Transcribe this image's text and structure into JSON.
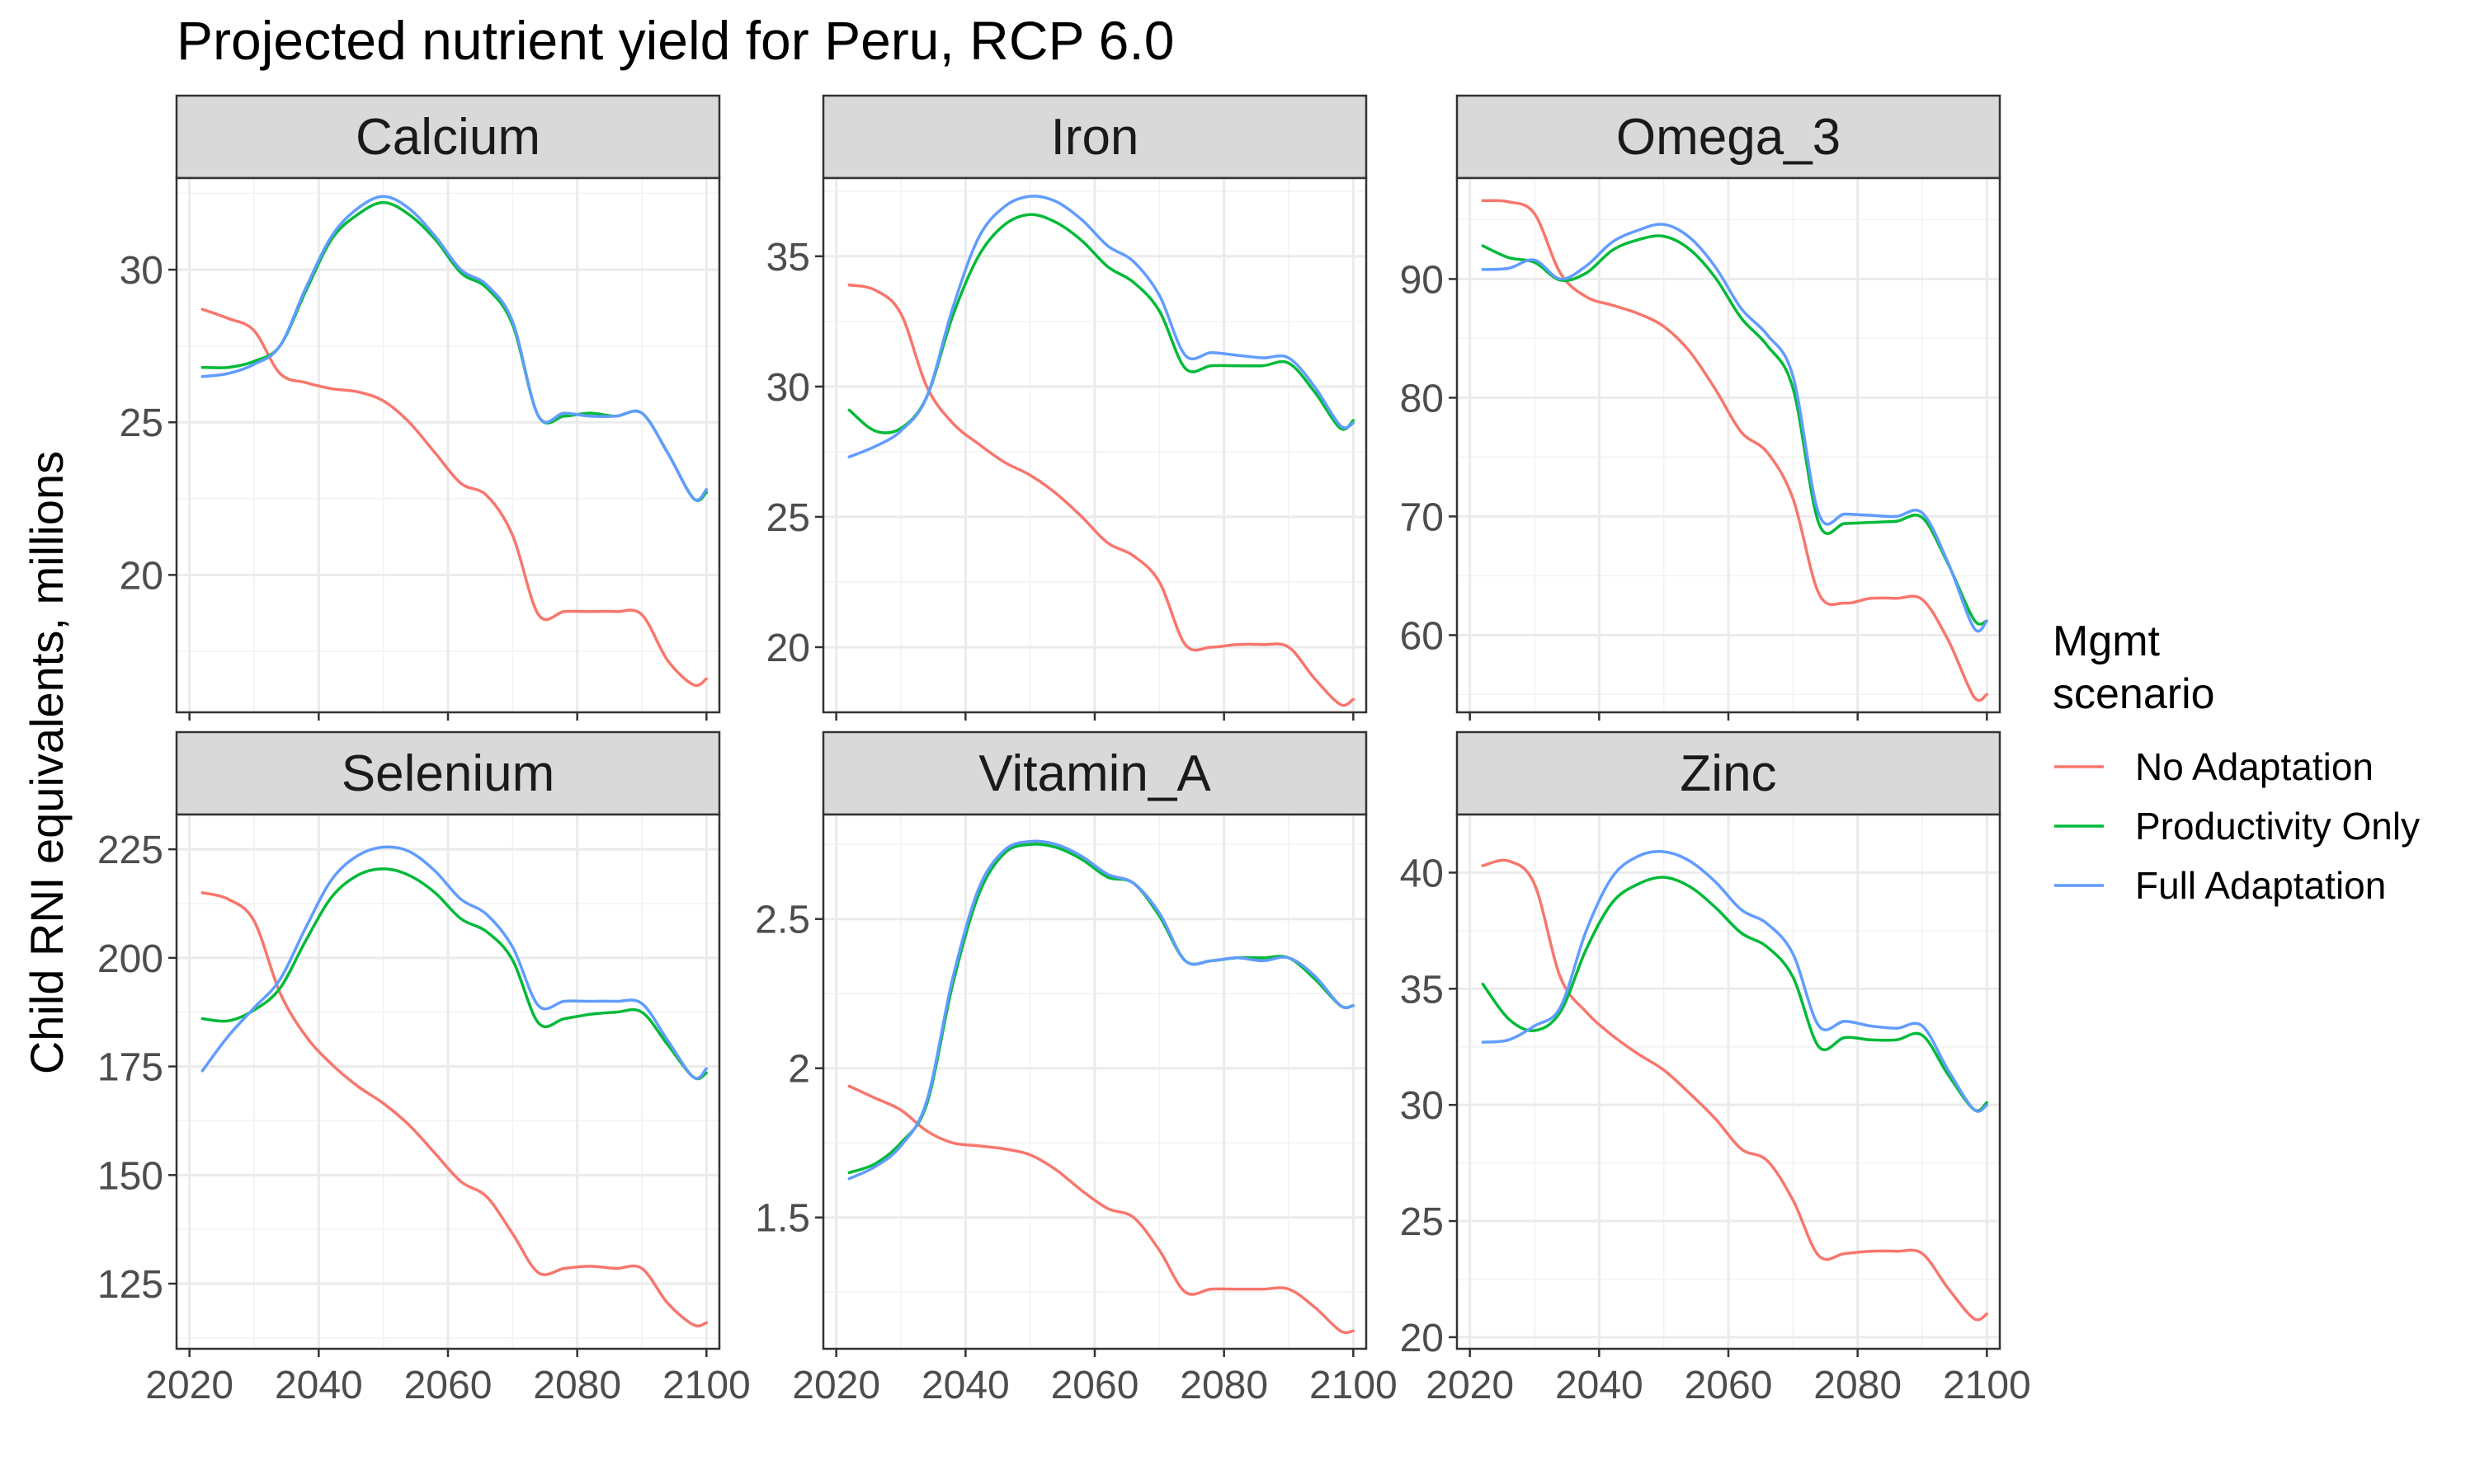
{
  "chart_data": {
    "type": "line",
    "title": "Projected nutrient yield for Peru, RCP 6.0",
    "ylabel": "Child RNI equivalents, millions",
    "xlabel": "",
    "xlim": [
      2018,
      2102
    ],
    "xticks": [
      2020,
      2040,
      2060,
      2080,
      2100
    ],
    "x": [
      2022,
      2026,
      2030,
      2034,
      2038,
      2042,
      2046,
      2050,
      2054,
      2058,
      2062,
      2066,
      2070,
      2074,
      2078,
      2082,
      2086,
      2090,
      2094,
      2098,
      2100
    ],
    "grid": true,
    "legend": {
      "title_lines": [
        "Mgmt",
        "scenario"
      ],
      "position": "right",
      "entries": [
        {
          "name": "No Adaptation",
          "color": "#F8766D"
        },
        {
          "name": "Productivity Only",
          "color": "#00BA38"
        },
        {
          "name": "Full Adaptation",
          "color": "#619CFF"
        }
      ]
    },
    "panels": [
      {
        "facet": "Calcium",
        "ylim": [
          15.5,
          33
        ],
        "yticks": [
          20,
          25,
          30
        ],
        "series": [
          {
            "name": "No Adaptation",
            "values": [
              28.7,
              28.4,
              28.0,
              26.6,
              26.3,
              26.1,
              26.0,
              25.7,
              25.0,
              24.0,
              23.0,
              22.6,
              21.3,
              18.7,
              18.8,
              18.8,
              18.8,
              18.7,
              17.2,
              16.4,
              16.6
            ]
          },
          {
            "name": "Productivity Only",
            "values": [
              26.8,
              26.8,
              27.0,
              27.5,
              29.3,
              31.0,
              31.8,
              32.2,
              31.8,
              31.0,
              29.9,
              29.4,
              28.2,
              25.2,
              25.2,
              25.3,
              25.2,
              25.3,
              24.0,
              22.5,
              22.7
            ]
          },
          {
            "name": "Full Adaptation",
            "values": [
              26.5,
              26.6,
              26.9,
              27.5,
              29.4,
              31.1,
              32.0,
              32.4,
              32.0,
              31.1,
              30.0,
              29.5,
              28.3,
              25.2,
              25.3,
              25.2,
              25.2,
              25.3,
              24.0,
              22.5,
              22.8
            ]
          }
        ]
      },
      {
        "facet": "Iron",
        "ylim": [
          17.5,
          38
        ],
        "yticks": [
          20,
          25,
          30,
          35
        ],
        "series": [
          {
            "name": "No Adaptation",
            "values": [
              33.9,
              33.7,
              32.8,
              30.0,
              28.6,
              27.8,
              27.1,
              26.6,
              25.9,
              25.0,
              24.0,
              23.5,
              22.5,
              20.1,
              20.0,
              20.1,
              20.1,
              20.0,
              18.8,
              17.8,
              18.0
            ]
          },
          {
            "name": "Productivity Only",
            "values": [
              29.1,
              28.3,
              28.4,
              29.6,
              32.7,
              35.0,
              36.2,
              36.6,
              36.3,
              35.6,
              34.6,
              34.0,
              32.9,
              30.7,
              30.8,
              30.8,
              30.8,
              30.9,
              29.8,
              28.4,
              28.7
            ]
          },
          {
            "name": "Full Adaptation",
            "values": [
              27.3,
              27.7,
              28.3,
              29.6,
              33.0,
              35.7,
              36.9,
              37.3,
              37.1,
              36.4,
              35.4,
              34.8,
              33.5,
              31.2,
              31.3,
              31.2,
              31.1,
              31.1,
              30.0,
              28.5,
              28.6
            ]
          }
        ]
      },
      {
        "facet": "Omega_3",
        "ylim": [
          53.5,
          98.5
        ],
        "yticks": [
          60,
          70,
          80,
          90
        ],
        "series": [
          {
            "name": "No Adaptation",
            "values": [
              96.6,
              96.5,
              95.5,
              90.5,
              88.5,
              87.8,
              87.1,
              86.0,
              83.9,
              80.7,
              77.1,
              75.4,
              71.5,
              63.5,
              62.7,
              63.1,
              63.1,
              63.0,
              59.6,
              54.8,
              55.0
            ]
          },
          {
            "name": "Productivity Only",
            "values": [
              92.8,
              91.8,
              91.4,
              89.9,
              90.5,
              92.4,
              93.3,
              93.6,
              92.5,
              90.1,
              86.7,
              84.4,
              80.8,
              69.4,
              69.4,
              69.5,
              69.6,
              69.9,
              66.0,
              61.3,
              61.2
            ]
          },
          {
            "name": "Full Adaptation",
            "values": [
              90.8,
              90.9,
              91.6,
              90.0,
              91.1,
              93.1,
              94.1,
              94.6,
              93.5,
              91.0,
              87.5,
              85.3,
              81.8,
              70.2,
              70.2,
              70.1,
              70.0,
              70.3,
              66.1,
              60.6,
              61.2
            ]
          }
        ]
      },
      {
        "facet": "Selenium",
        "ylim": [
          110,
          233
        ],
        "yticks": [
          125,
          150,
          175,
          200,
          225
        ],
        "series": [
          {
            "name": "No Adaptation",
            "values": [
              215.0,
              213.5,
              208.5,
              192.0,
              182.0,
              175.5,
              170.5,
              166.5,
              161.5,
              155.0,
              148.5,
              145.0,
              136.5,
              127.5,
              128.5,
              129.0,
              128.5,
              128.5,
              120.5,
              115.5,
              116.0
            ]
          },
          {
            "name": "Productivity Only",
            "values": [
              186.0,
              185.5,
              188.0,
              193.0,
              204.0,
              214.0,
              219.0,
              220.5,
              219.0,
              215.0,
              209.0,
              206.0,
              199.5,
              185.0,
              186.0,
              187.0,
              187.5,
              187.5,
              180.0,
              172.5,
              173.5
            ]
          },
          {
            "name": "Full Adaptation",
            "values": [
              174.0,
              182.0,
              188.5,
              195.0,
              207.0,
              218.0,
              223.5,
              225.5,
              224.5,
              220.0,
              213.5,
              210.0,
              202.5,
              189.0,
              190.0,
              190.0,
              190.0,
              189.5,
              181.0,
              172.5,
              174.5
            ]
          }
        ]
      },
      {
        "facet": "Vitamin_A",
        "ylim": [
          1.06,
          2.85
        ],
        "yticks": [
          1.5,
          2.0,
          2.5
        ],
        "series": [
          {
            "name": "No Adaptation",
            "values": [
              1.94,
              1.9,
              1.86,
              1.79,
              1.75,
              1.74,
              1.73,
              1.71,
              1.66,
              1.59,
              1.53,
              1.5,
              1.39,
              1.25,
              1.26,
              1.26,
              1.26,
              1.26,
              1.2,
              1.12,
              1.12
            ]
          },
          {
            "name": "Productivity Only",
            "values": [
              1.65,
              1.68,
              1.75,
              1.88,
              2.28,
              2.58,
              2.72,
              2.75,
              2.74,
              2.7,
              2.64,
              2.62,
              2.51,
              2.36,
              2.36,
              2.37,
              2.37,
              2.37,
              2.3,
              2.21,
              2.21
            ]
          },
          {
            "name": "Full Adaptation",
            "values": [
              1.63,
              1.67,
              1.74,
              1.89,
              2.3,
              2.6,
              2.73,
              2.76,
              2.75,
              2.71,
              2.65,
              2.62,
              2.52,
              2.36,
              2.36,
              2.37,
              2.36,
              2.37,
              2.31,
              2.21,
              2.21
            ]
          }
        ]
      },
      {
        "facet": "Zinc",
        "ylim": [
          19.5,
          42.5
        ],
        "yticks": [
          20,
          25,
          30,
          35,
          40
        ],
        "series": [
          {
            "name": "No Adaptation",
            "values": [
              40.3,
              40.5,
              39.5,
              35.5,
              34.0,
              33.0,
              32.2,
              31.5,
              30.5,
              29.4,
              28.1,
              27.6,
              25.9,
              23.5,
              23.6,
              23.7,
              23.7,
              23.6,
              22.1,
              20.8,
              21.0
            ]
          },
          {
            "name": "Productivity Only",
            "values": [
              35.2,
              33.7,
              33.2,
              34.0,
              36.7,
              38.7,
              39.5,
              39.8,
              39.4,
              38.5,
              37.4,
              36.8,
              35.5,
              32.5,
              32.9,
              32.8,
              32.8,
              33.0,
              31.3,
              29.8,
              30.1
            ]
          },
          {
            "name": "Full Adaptation",
            "values": [
              32.7,
              32.8,
              33.4,
              34.2,
              37.5,
              39.8,
              40.7,
              40.9,
              40.5,
              39.6,
              38.4,
              37.8,
              36.5,
              33.4,
              33.6,
              33.4,
              33.3,
              33.4,
              31.5,
              29.8,
              30.0
            ]
          }
        ]
      }
    ]
  }
}
